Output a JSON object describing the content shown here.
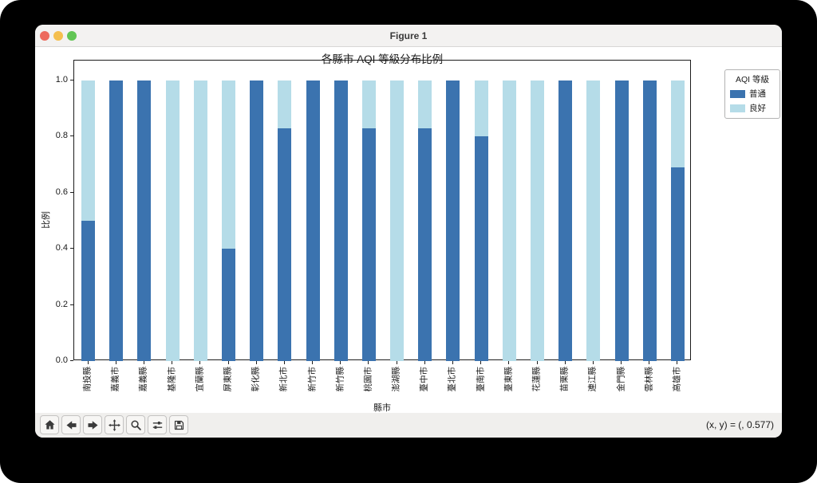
{
  "window": {
    "title": "Figure 1"
  },
  "statusbar": {
    "coords": "(x, y) = (, 0.577)"
  },
  "toolbar": {
    "buttons": [
      "home",
      "back",
      "forward",
      "pan",
      "zoom-to-rect",
      "configure-subplots",
      "save"
    ]
  },
  "chart_data": {
    "type": "bar",
    "stacked": true,
    "title": "各縣市 AQI 等級分布比例",
    "xlabel": "縣市",
    "ylabel": "比例",
    "legend_title": "AQI 等級",
    "legend_position": "upper right outside",
    "grid": false,
    "ylim": [
      0.0,
      1.05
    ],
    "yticks": [
      "0.0",
      "0.2",
      "0.4",
      "0.6",
      "0.8",
      "1.0"
    ],
    "categories": [
      "南投縣",
      "嘉義市",
      "嘉義縣",
      "基隆市",
      "宜蘭縣",
      "屏東縣",
      "彰化縣",
      "新北市",
      "新竹市",
      "新竹縣",
      "桃園市",
      "澎湖縣",
      "臺中市",
      "臺北市",
      "臺南市",
      "臺東縣",
      "花蓮縣",
      "苗栗縣",
      "連江縣",
      "金門縣",
      "雲林縣",
      "高雄市"
    ],
    "series": [
      {
        "name": "普通",
        "color": "#3b73af",
        "values": [
          0.5,
          1.0,
          1.0,
          0.0,
          0.0,
          0.4,
          1.0,
          0.83,
          1.0,
          1.0,
          0.83,
          0.0,
          0.83,
          1.0,
          0.8,
          0.0,
          0.0,
          1.0,
          0.0,
          1.0,
          1.0,
          0.69
        ]
      },
      {
        "name": "良好",
        "color": "#b5dce8",
        "values": [
          0.5,
          0.0,
          0.0,
          1.0,
          1.0,
          0.6,
          0.0,
          0.17,
          0.0,
          0.0,
          0.17,
          1.0,
          0.17,
          0.0,
          0.2,
          1.0,
          1.0,
          0.0,
          1.0,
          0.0,
          0.0,
          0.31
        ]
      }
    ]
  }
}
